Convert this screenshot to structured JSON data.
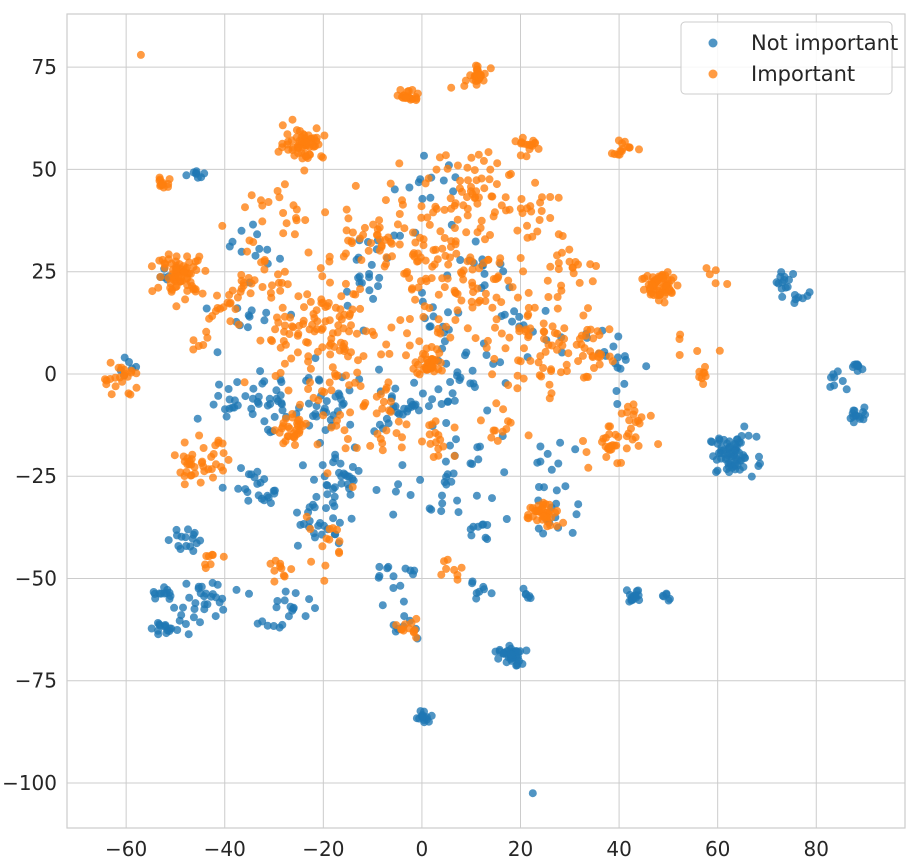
{
  "chart_data": {
    "type": "scatter",
    "title": "",
    "xlabel": "",
    "ylabel": "",
    "xlim": [
      -72,
      98
    ],
    "ylim": [
      -111,
      88
    ],
    "xticks": [
      -60,
      -40,
      -20,
      0,
      20,
      40,
      60,
      80
    ],
    "yticks": [
      75,
      50,
      25,
      0,
      -25,
      -50,
      -75,
      -100
    ],
    "xtick_labels": [
      "−60",
      "−40",
      "−20",
      "0",
      "20",
      "40",
      "60",
      "80"
    ],
    "ytick_labels": [
      "75",
      "50",
      "25",
      "0",
      "−25",
      "−50",
      "−75",
      "−100"
    ],
    "grid": true,
    "legend_position": "top-right",
    "series": [
      {
        "name": "Not important",
        "color": "#1f77b4",
        "clusters": [
          {
            "x": 63,
            "y": -20,
            "spread": 2.4,
            "count": 70
          },
          {
            "x": 18,
            "y": -69,
            "spread": 1.2,
            "count": 40
          },
          {
            "x": 0.5,
            "y": -84,
            "spread": 0.8,
            "count": 14
          },
          {
            "x": 74,
            "y": 23,
            "spread": 1.2,
            "count": 12
          },
          {
            "x": 77,
            "y": 19,
            "spread": 1.2,
            "count": 8
          },
          {
            "x": 88.5,
            "y": 2,
            "spread": 0.6,
            "count": 10
          },
          {
            "x": 84,
            "y": -2,
            "spread": 1.5,
            "count": 8
          },
          {
            "x": 88.5,
            "y": -10,
            "spread": 0.9,
            "count": 14
          },
          {
            "x": 43,
            "y": -54,
            "spread": 1.0,
            "count": 16
          },
          {
            "x": 50,
            "y": -54,
            "spread": 0.7,
            "count": 6
          },
          {
            "x": -52,
            "y": -62,
            "spread": 1.4,
            "count": 16
          },
          {
            "x": -53,
            "y": -54,
            "spread": 1.0,
            "count": 12
          },
          {
            "x": -49,
            "y": -40,
            "spread": 1.7,
            "count": 16
          },
          {
            "x": -44,
            "y": -56,
            "spread": 3.2,
            "count": 30
          },
          {
            "x": -28,
            "y": -58,
            "spread": 2.6,
            "count": 20
          },
          {
            "x": -21,
            "y": -36,
            "spread": 3.0,
            "count": 28
          },
          {
            "x": -17,
            "y": -25,
            "spread": 3.0,
            "count": 30
          },
          {
            "x": -33,
            "y": -28,
            "spread": 3.0,
            "count": 22
          },
          {
            "x": -38,
            "y": -7,
            "spread": 3.0,
            "count": 22
          },
          {
            "x": -31,
            "y": -5,
            "spread": 3.5,
            "count": 22
          },
          {
            "x": -20,
            "y": -8,
            "spread": 4.0,
            "count": 32
          },
          {
            "x": -5,
            "y": -8,
            "spread": 4.0,
            "count": 28
          },
          {
            "x": 7,
            "y": -3,
            "spread": 4.0,
            "count": 26
          },
          {
            "x": 2,
            "y": -30,
            "spread": 3.5,
            "count": 18
          },
          {
            "x": 13,
            "y": -37,
            "spread": 2.5,
            "count": 10
          },
          {
            "x": -5,
            "y": -49,
            "spread": 2.5,
            "count": 14
          },
          {
            "x": 12,
            "y": -53,
            "spread": 1.2,
            "count": 8
          },
          {
            "x": -3,
            "y": -62,
            "spread": 1.5,
            "count": 8
          },
          {
            "x": 27,
            "y": -34,
            "spread": 3.0,
            "count": 14
          },
          {
            "x": 22,
            "y": -54,
            "spread": 1.0,
            "count": 6
          },
          {
            "x": -46,
            "y": 49,
            "spread": 1.2,
            "count": 8
          },
          {
            "x": -52,
            "y": 24,
            "spread": 1.5,
            "count": 6
          },
          {
            "x": -32,
            "y": 30,
            "spread": 3.0,
            "count": 12
          },
          {
            "x": -15,
            "y": 20,
            "spread": 4.0,
            "count": 14
          },
          {
            "x": 12,
            "y": 25,
            "spread": 4.0,
            "count": 14
          },
          {
            "x": 20,
            "y": 10,
            "spread": 4.0,
            "count": 16
          },
          {
            "x": 36,
            "y": 5,
            "spread": 3.0,
            "count": 10
          },
          {
            "x": 3,
            "y": 12,
            "spread": 3.0,
            "count": 14
          },
          {
            "x": -60,
            "y": 2,
            "spread": 1.0,
            "count": 6
          },
          {
            "x": 25,
            "y": -22,
            "spread": 3.0,
            "count": 10
          },
          {
            "x": 10,
            "y": -20,
            "spread": 4.0,
            "count": 14
          },
          {
            "x": 0,
            "y": 45,
            "spread": 4.0,
            "count": 12
          },
          {
            "x": -7,
            "y": 31,
            "spread": 4.0,
            "count": 10
          },
          {
            "x": -35,
            "y": 15,
            "spread": 4.0,
            "count": 12
          },
          {
            "x": 40,
            "y": 0,
            "spread": 3.0,
            "count": 8
          },
          {
            "x": 22.5,
            "y": -102.5,
            "spread": 0,
            "count": 1
          }
        ]
      },
      {
        "name": "Important",
        "color": "#ff7f0e",
        "clusters": [
          {
            "x": -49,
            "y": 24.5,
            "spread": 2.4,
            "count": 70
          },
          {
            "x": 48.5,
            "y": 21.5,
            "spread": 2.0,
            "count": 60
          },
          {
            "x": -24,
            "y": 56.5,
            "spread": 2.0,
            "count": 60
          },
          {
            "x": 1.5,
            "y": 2.5,
            "spread": 1.5,
            "count": 40
          },
          {
            "x": 11.5,
            "y": 73,
            "spread": 1.0,
            "count": 25
          },
          {
            "x": -2.5,
            "y": 68,
            "spread": 0.9,
            "count": 20
          },
          {
            "x": 24.5,
            "y": -34.5,
            "spread": 1.9,
            "count": 40
          },
          {
            "x": -26,
            "y": -14,
            "spread": 1.6,
            "count": 30
          },
          {
            "x": 22,
            "y": 56,
            "spread": 1.0,
            "count": 15
          },
          {
            "x": -3,
            "y": -62,
            "spread": 1.0,
            "count": 12
          },
          {
            "x": -52.5,
            "y": 47,
            "spread": 0.8,
            "count": 12
          },
          {
            "x": 40.5,
            "y": 55,
            "spread": 1.3,
            "count": 14
          },
          {
            "x": -61,
            "y": -1,
            "spread": 2.0,
            "count": 22
          },
          {
            "x": 57,
            "y": 0,
            "spread": 1.0,
            "count": 8
          },
          {
            "x": -45,
            "y": -22,
            "spread": 2.8,
            "count": 40
          },
          {
            "x": 39,
            "y": -18,
            "spread": 2.5,
            "count": 32
          },
          {
            "x": 43,
            "y": -9,
            "spread": 1.5,
            "count": 12
          },
          {
            "x": -21,
            "y": 10,
            "spread": 7.0,
            "count": 120
          },
          {
            "x": 6,
            "y": 22,
            "spread": 8.0,
            "count": 120
          },
          {
            "x": 12,
            "y": 45,
            "spread": 5.5,
            "count": 60
          },
          {
            "x": -7,
            "y": 36,
            "spread": 6.0,
            "count": 50
          },
          {
            "x": 25,
            "y": 6,
            "spread": 6.0,
            "count": 60
          },
          {
            "x": -12,
            "y": -10,
            "spread": 6.0,
            "count": 50
          },
          {
            "x": 34,
            "y": 5,
            "spread": 4.0,
            "count": 25
          },
          {
            "x": 30,
            "y": 26,
            "spread": 3.0,
            "count": 20
          },
          {
            "x": -34,
            "y": 25,
            "spread": 3.0,
            "count": 20
          },
          {
            "x": -40,
            "y": 17,
            "spread": 2.5,
            "count": 14
          },
          {
            "x": -28,
            "y": 40,
            "spread": 4.0,
            "count": 20
          },
          {
            "x": 22,
            "y": 38,
            "spread": 3.0,
            "count": 14
          },
          {
            "x": -45,
            "y": 8,
            "spread": 1.0,
            "count": 6
          },
          {
            "x": 15,
            "y": -12,
            "spread": 3.0,
            "count": 12
          },
          {
            "x": -20,
            "y": -42,
            "spread": 3.0,
            "count": 14
          },
          {
            "x": -29,
            "y": -48,
            "spread": 1.5,
            "count": 10
          },
          {
            "x": -43,
            "y": -45,
            "spread": 1.5,
            "count": 8
          },
          {
            "x": 6,
            "y": -48,
            "spread": 1.5,
            "count": 8
          },
          {
            "x": 3,
            "y": -16,
            "spread": 3.0,
            "count": 18
          },
          {
            "x": -57,
            "y": 78,
            "spread": 0,
            "count": 1
          },
          {
            "x": 8,
            "y": 71,
            "spread": 0.8,
            "count": 3
          },
          {
            "x": 60,
            "y": 25,
            "spread": 1.5,
            "count": 5
          },
          {
            "x": 55,
            "y": 8,
            "spread": 2.0,
            "count": 5
          }
        ]
      }
    ]
  }
}
